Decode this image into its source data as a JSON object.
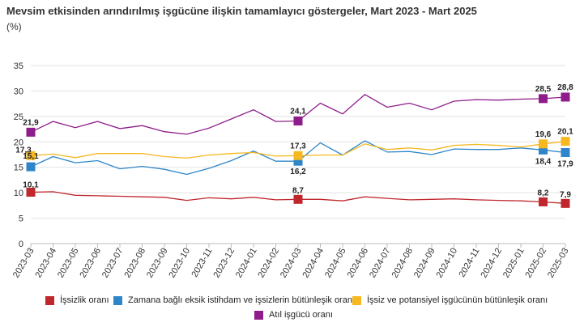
{
  "title": "Mevsim etkisinden arındırılmış işgücüne ilişkin tamamlayıcı göstergeler, Mart 2023 - Mart 2025",
  "subtitle": "(%)",
  "chart_data": {
    "type": "line",
    "title": "Mevsim etkisinden arındırılmış işgücüne ilişkin tamamlayıcı göstergeler, Mart 2023 - Mart 2025",
    "ylabel": "(%)",
    "ylim": [
      0,
      35
    ],
    "yticks": [
      0,
      5,
      10,
      15,
      20,
      25,
      30,
      35
    ],
    "grid": true,
    "legend_position": "bottom",
    "x": [
      "2023-03",
      "2023-04",
      "2023-05",
      "2023-06",
      "2023-07",
      "2023-08",
      "2023-09",
      "2023-10",
      "2023-11",
      "2023-12",
      "2024-01",
      "2024-02",
      "2024-03",
      "2024-04",
      "2024-05",
      "2024-06",
      "2024-07",
      "2024-08",
      "2024-09",
      "2024-10",
      "2024-11",
      "2024-12",
      "2025-01",
      "2025-02",
      "2025-03"
    ],
    "series": [
      {
        "name": "İşsizlik oranı",
        "color": "#c0272d",
        "values": [
          10.1,
          10.2,
          9.5,
          9.4,
          9.3,
          9.2,
          9.1,
          8.5,
          9.0,
          8.8,
          9.1,
          8.6,
          8.7,
          8.7,
          8.4,
          9.2,
          8.9,
          8.6,
          8.7,
          8.8,
          8.6,
          8.5,
          8.4,
          8.2,
          7.9
        ],
        "labels": {
          "0": "10,1",
          "12": "8,7",
          "23": "8,2",
          "24": "7,9"
        }
      },
      {
        "name": "Zamana bağlı eksik istihdam ve işsizlerin bütünleşik oranı",
        "color": "#2e86c9",
        "values": [
          15.1,
          17.1,
          15.9,
          16.3,
          14.7,
          15.2,
          14.6,
          13.6,
          14.8,
          16.3,
          18.2,
          16.2,
          16.2,
          19.8,
          17.4,
          20.2,
          18.0,
          18.1,
          17.5,
          18.6,
          18.5,
          18.5,
          18.8,
          18.4,
          17.9
        ],
        "labels": {
          "0": "15,1",
          "12": "16,2",
          "23": "18,4",
          "24": "17,9"
        }
      },
      {
        "name": "İşsiz ve potansiyel işgücünün bütünleşik oranı",
        "color": "#f5b820",
        "values": [
          17.3,
          17.6,
          16.9,
          17.7,
          17.7,
          17.7,
          17.1,
          16.8,
          17.4,
          17.7,
          17.9,
          17.2,
          17.3,
          17.4,
          17.4,
          19.6,
          18.5,
          18.8,
          18.4,
          19.3,
          19.5,
          19.3,
          19.0,
          19.6,
          20.1
        ],
        "labels": {
          "0": "17,3",
          "12": "17,3",
          "23": "19,6",
          "24": "20,1"
        }
      },
      {
        "name": "Atıl işgücü oranı",
        "color": "#8e1c8a",
        "values": [
          21.9,
          24.0,
          22.8,
          24.0,
          22.6,
          23.2,
          22.0,
          21.5,
          22.7,
          24.5,
          26.3,
          24.0,
          24.1,
          27.6,
          25.5,
          29.3,
          26.8,
          27.6,
          26.3,
          28.0,
          28.3,
          28.2,
          28.4,
          28.5,
          28.8
        ],
        "labels": {
          "0": "21,9",
          "12": "24,1",
          "23": "28,5",
          "24": "28,8"
        }
      }
    ]
  }
}
